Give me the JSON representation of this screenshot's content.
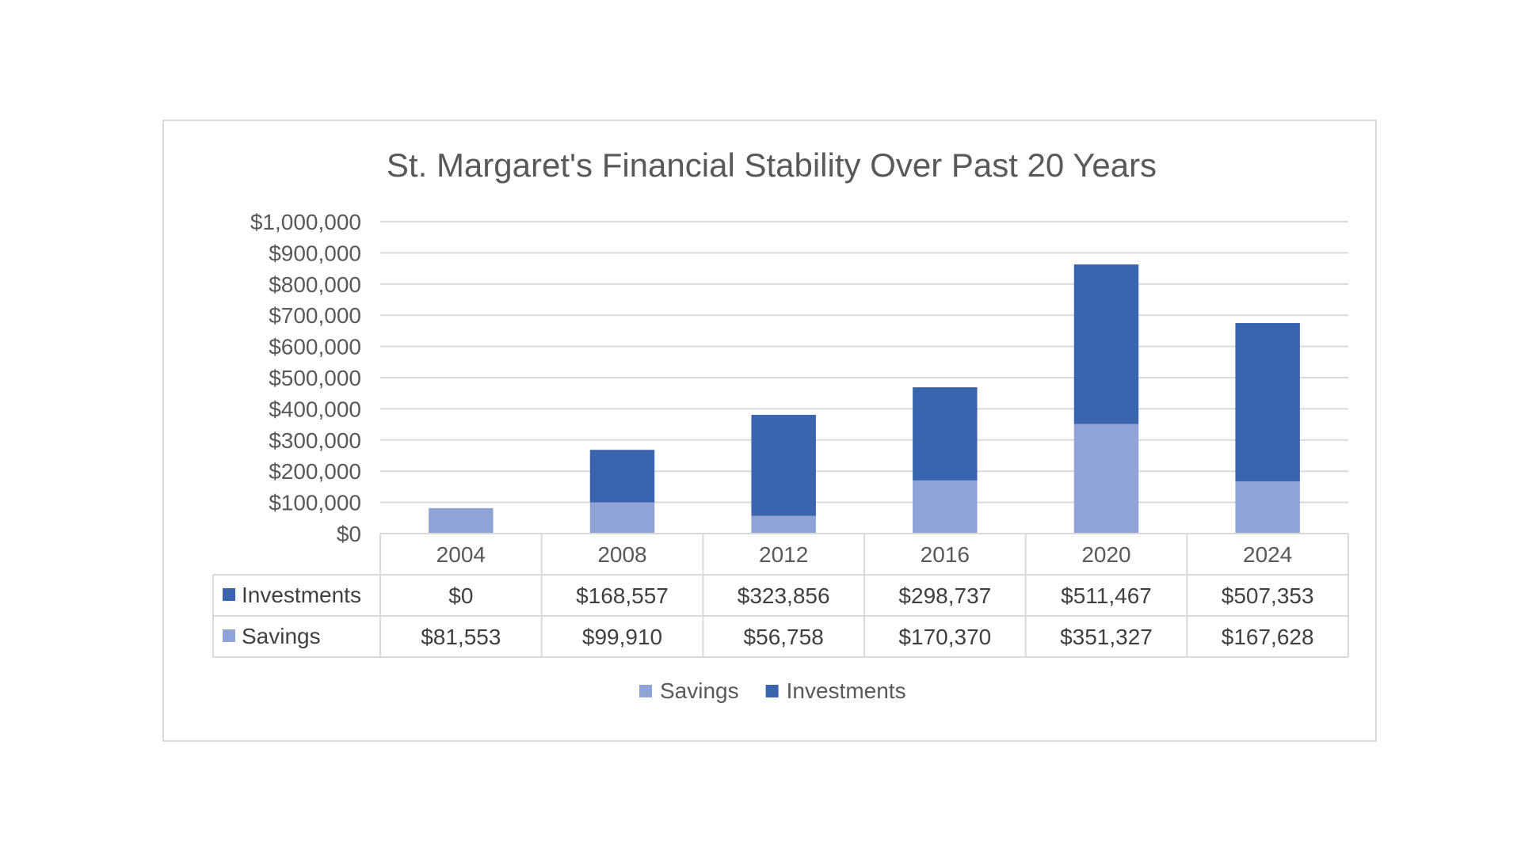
{
  "chart_data": {
    "type": "bar",
    "stacked": true,
    "title": "St. Margaret's Financial Stability Over Past 20 Years",
    "xlabel": "",
    "ylabel": "",
    "categories": [
      "2004",
      "2008",
      "2012",
      "2016",
      "2020",
      "2024"
    ],
    "ylim": [
      0,
      1000000
    ],
    "yticks": [
      0,
      100000,
      200000,
      300000,
      400000,
      500000,
      600000,
      700000,
      800000,
      900000,
      1000000
    ],
    "ytick_labels": [
      "$0",
      "$100,000",
      "$200,000",
      "$300,000",
      "$400,000",
      "$500,000",
      "$600,000",
      "$700,000",
      "$800,000",
      "$900,000",
      "$1,000,000"
    ],
    "grid": true,
    "series": [
      {
        "name": "Savings",
        "color": "#8fa3d6",
        "values": [
          81553,
          99910,
          56758,
          170370,
          351327,
          167628
        ],
        "labels": [
          "$81,553",
          "$99,910",
          "$56,758",
          "$170,370",
          "$351,327",
          "$167,628"
        ]
      },
      {
        "name": "Investments",
        "color": "#3a64ae",
        "values": [
          0,
          168557,
          323856,
          298737,
          511467,
          507353
        ],
        "labels": [
          "$0",
          "$168,557",
          "$323,856",
          "$298,737",
          "$511,467",
          "$507,353"
        ]
      }
    ],
    "data_table": {
      "row_order": [
        "Investments",
        "Savings"
      ]
    },
    "legend": {
      "position": "bottom",
      "order": [
        "Savings",
        "Investments"
      ]
    }
  }
}
